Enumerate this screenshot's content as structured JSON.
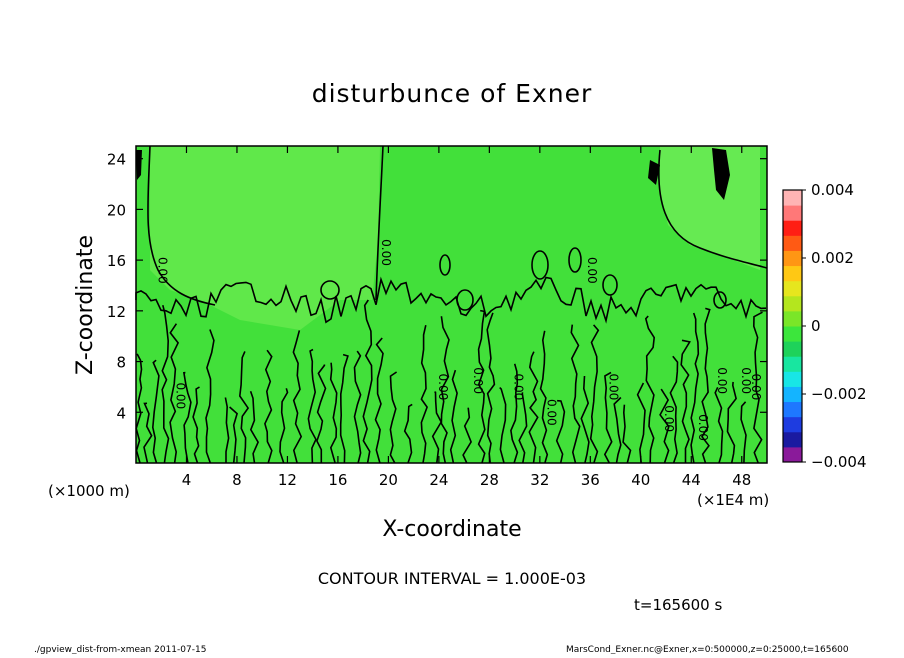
{
  "chart_data": {
    "type": "contour",
    "title": "disturbunce of Exner",
    "xlabel": "X-coordinate",
    "ylabel": "Z-coordinate",
    "x_unit_left": "(×1000 m)",
    "x_unit_right": "(×1E4 m)",
    "xlim": [
      0,
      50
    ],
    "ylim": [
      0,
      25
    ],
    "x_ticks": [
      4,
      8,
      12,
      16,
      20,
      24,
      28,
      32,
      36,
      40,
      44,
      48
    ],
    "y_ticks": [
      4,
      8,
      12,
      16,
      20,
      24
    ],
    "contour_interval_text": "CONTOUR INTERVAL = 1.000E-03",
    "contour_labels": [
      "0.00",
      "0.00",
      "0.00",
      "0.00",
      "0.00",
      "0.00",
      "0.00",
      "0.00",
      "0.00",
      "0.00",
      "0.00",
      "0.00",
      "0.00",
      "0.00"
    ],
    "colorbar": {
      "range": [
        -0.004,
        0.004
      ],
      "tick_labels": [
        "0.004",
        "0.002",
        "0",
        "−0.002",
        "−0.004"
      ],
      "colors": [
        "#8a1a9a",
        "#1a1aa0",
        "#1e3ce0",
        "#1e78ff",
        "#14b4ff",
        "#18e6e6",
        "#18e6a0",
        "#1ed25a",
        "#3ce63c",
        "#7ae628",
        "#b4e61e",
        "#e6e61e",
        "#ffc814",
        "#ff9614",
        "#ff5a14",
        "#ff1e14",
        "#ff7878",
        "#ffb4b4"
      ]
    }
  },
  "annotations": {
    "time": "t=165600 s",
    "footer_left": "./gpview_dist-from-xmean   2011-07-15",
    "footer_right": "MarsCond_Exner.nc@Exner,x=0:500000,z=0:25000,t=165600"
  }
}
